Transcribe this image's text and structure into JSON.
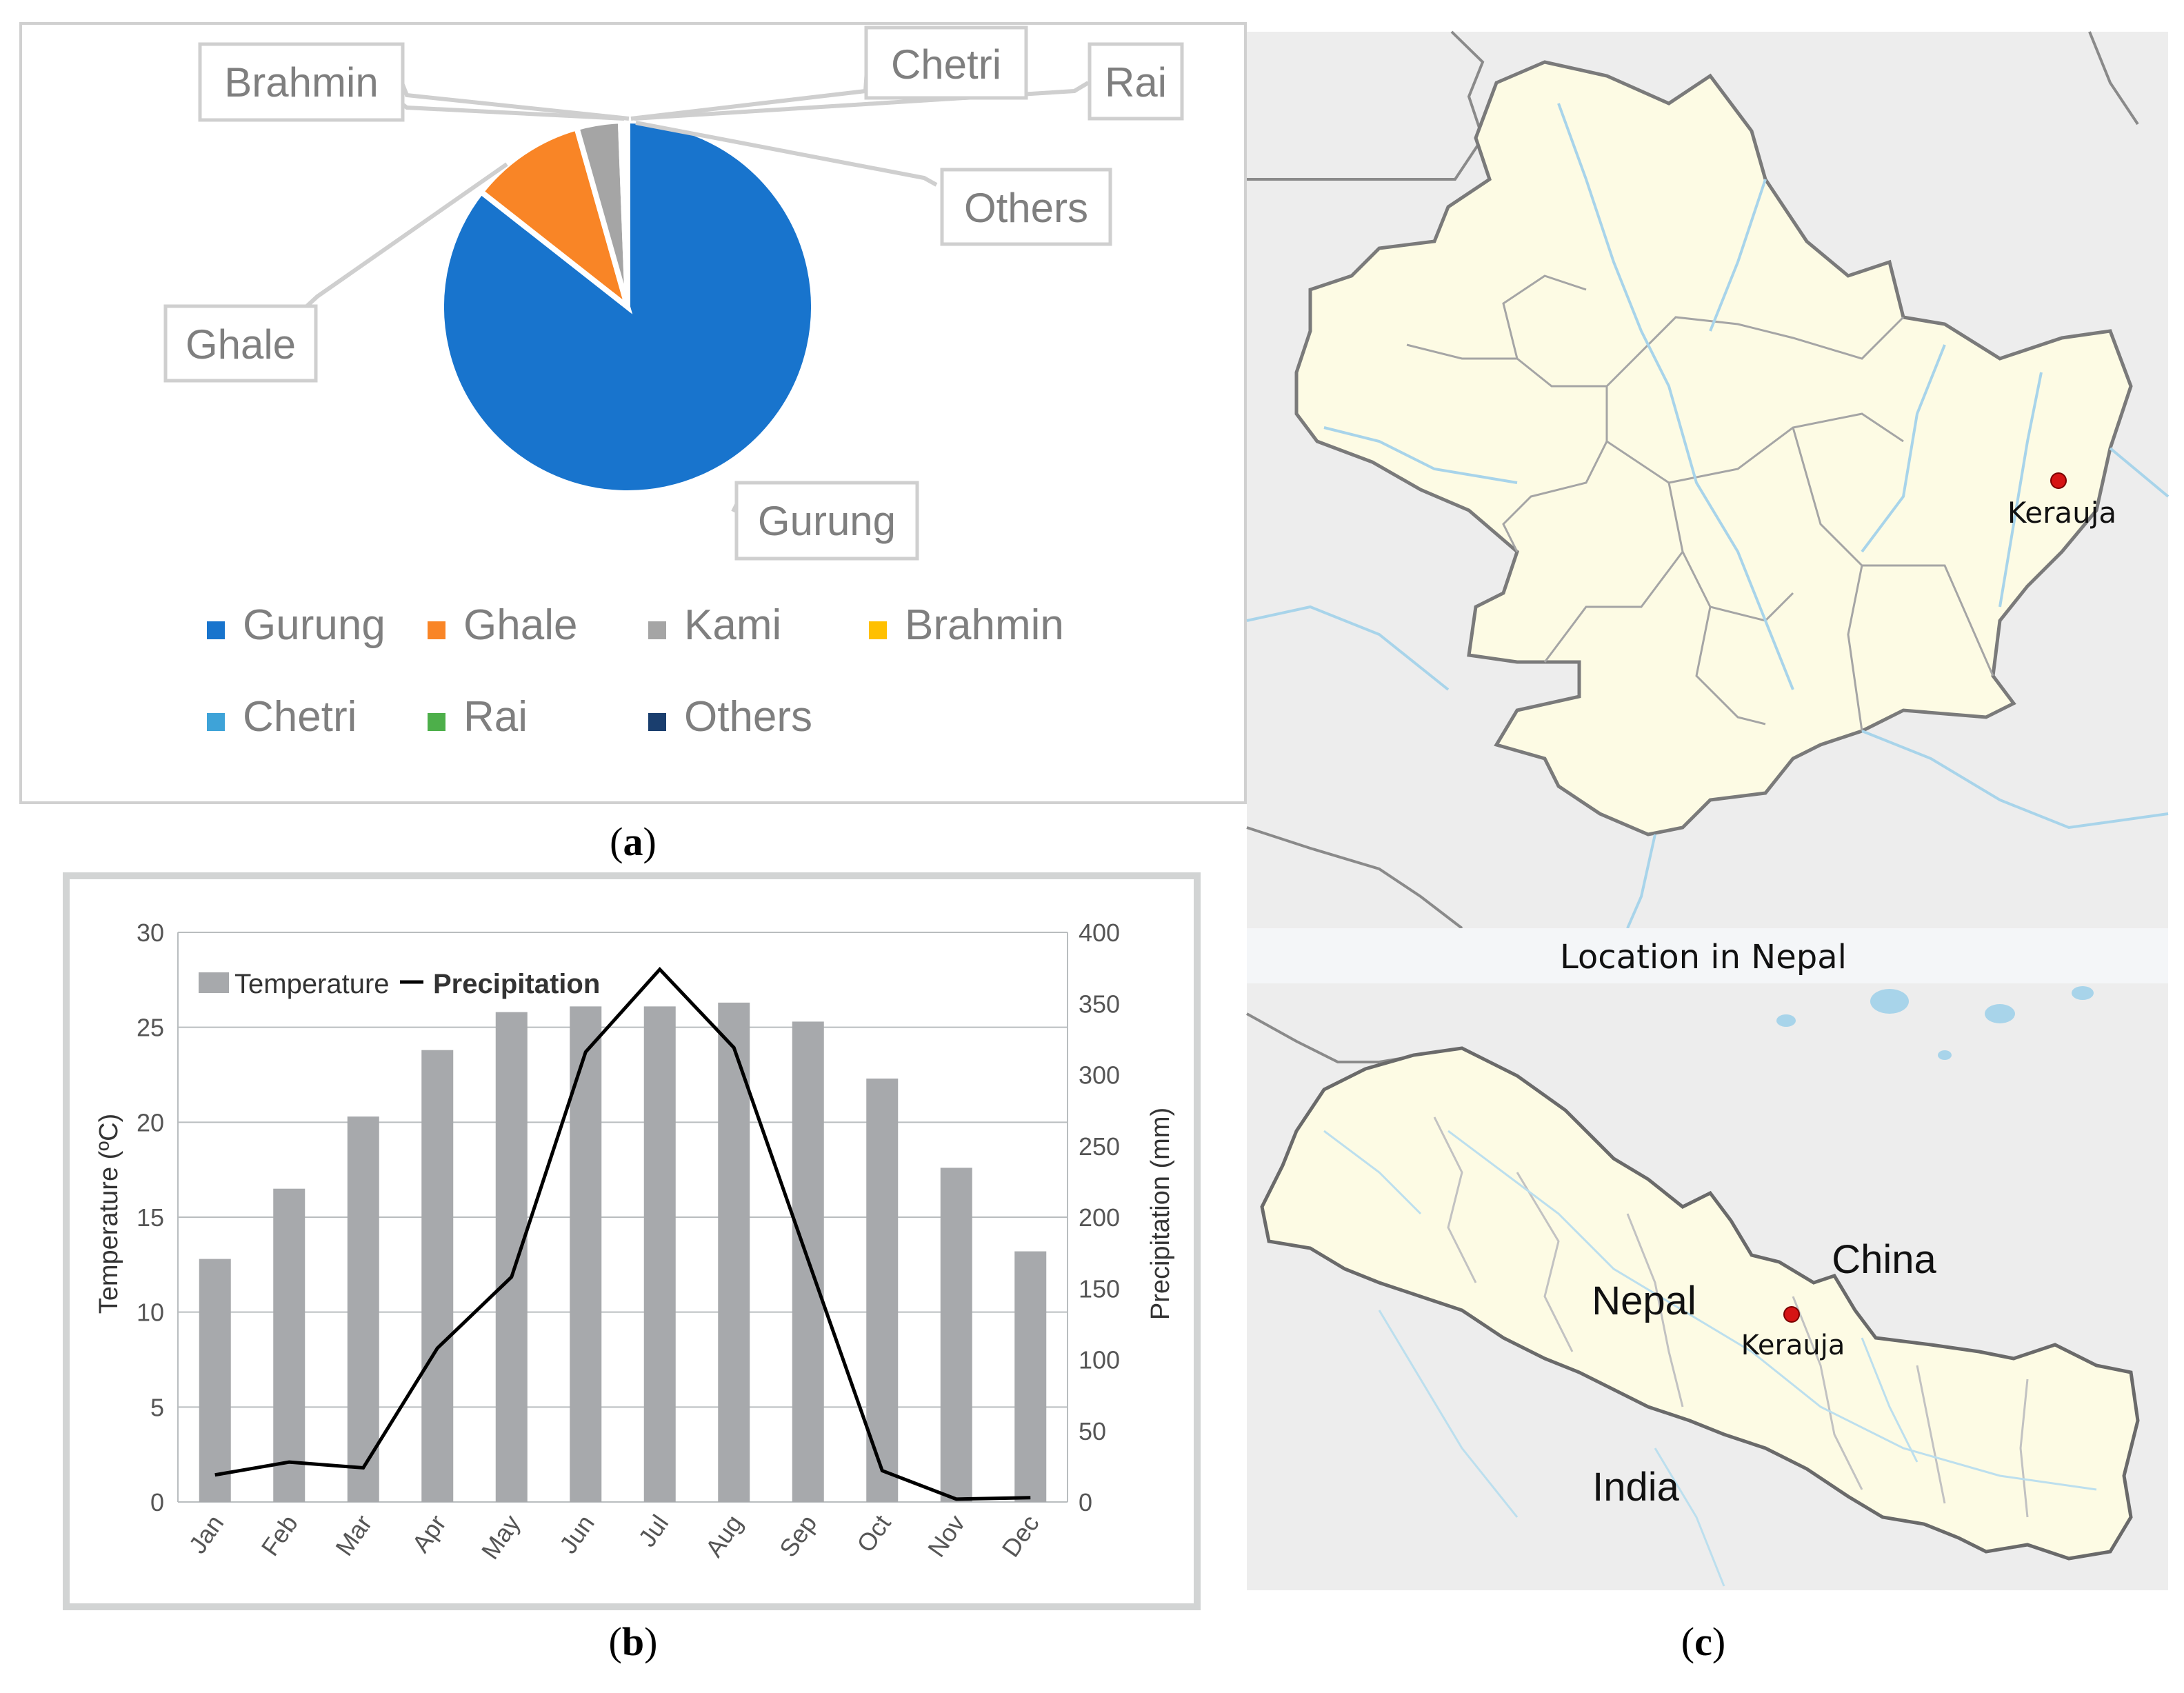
{
  "chart_data": [
    {
      "type": "pie",
      "panel": "(a)",
      "slices": [
        {
          "name": "Gurung",
          "value": 85.6,
          "color": "#1874cd"
        },
        {
          "name": "Ghale",
          "value": 10.0,
          "color": "#f98526"
        },
        {
          "name": "Kami",
          "value": 3.8,
          "color": "#a5a5a5"
        },
        {
          "name": "Brahmin",
          "value": 0.15,
          "color": "#ffc000"
        },
        {
          "name": "Chetri",
          "value": 0.15,
          "color": "#3ea3d8"
        },
        {
          "name": "Rai",
          "value": 0.15,
          "color": "#4daf4a"
        },
        {
          "name": "Others",
          "value": 0.15,
          "color": "#1a3e6e"
        }
      ],
      "callout_labels": [
        "Brahmin",
        "Chetri",
        "Rai",
        "Others",
        "Ghale",
        "Gurung"
      ],
      "legend": [
        "Gurung",
        "Ghale",
        "Kami",
        "Brahmin",
        "Chetri",
        "Rai",
        "Others"
      ],
      "legend_placement": "bottom"
    },
    {
      "type": "bar",
      "panel": "(b)",
      "categories": [
        "Jan",
        "Feb",
        "Mar",
        "Apr",
        "May",
        "Jun",
        "Jul",
        "Aug",
        "Sep",
        "Oct",
        "Nov",
        "Dec"
      ],
      "series": [
        {
          "name": "Temperature",
          "type": "bar",
          "axis": "left",
          "color": "#a7a9ac",
          "values": [
            12.8,
            16.5,
            20.3,
            23.8,
            25.8,
            26.1,
            26.1,
            26.3,
            25.3,
            22.3,
            17.6,
            13.2
          ]
        },
        {
          "name": "Precipitation",
          "type": "line",
          "axis": "right",
          "color": "#000000",
          "values": [
            19,
            28,
            24,
            108,
            158,
            316,
            374,
            319,
            170,
            22,
            2,
            3
          ]
        }
      ],
      "ylabel": "Temperature (ºC)",
      "y2label": "Precipitation (mm)",
      "ylim": [
        0,
        30
      ],
      "yticks": [
        0,
        5,
        10,
        15,
        20,
        25,
        30
      ],
      "y2lim": [
        0,
        400
      ],
      "y2ticks": [
        0,
        50,
        100,
        150,
        200,
        250,
        300,
        350,
        400
      ],
      "grid": true,
      "legend_placement": "top-left"
    }
  ],
  "captions": {
    "a": "(a)",
    "a_letter": "a",
    "b_letter": "b",
    "c_letter": "c"
  },
  "map": {
    "title": "Location in Nepal",
    "place_label": "Kerauja",
    "country_labels": {
      "nepal": "Nepal",
      "china": "China",
      "india": "India"
    },
    "colors": {
      "district_fill": "#fdfbe4",
      "background": "#ededed",
      "river": "#a8d4ea",
      "marker": "#d61414"
    }
  }
}
